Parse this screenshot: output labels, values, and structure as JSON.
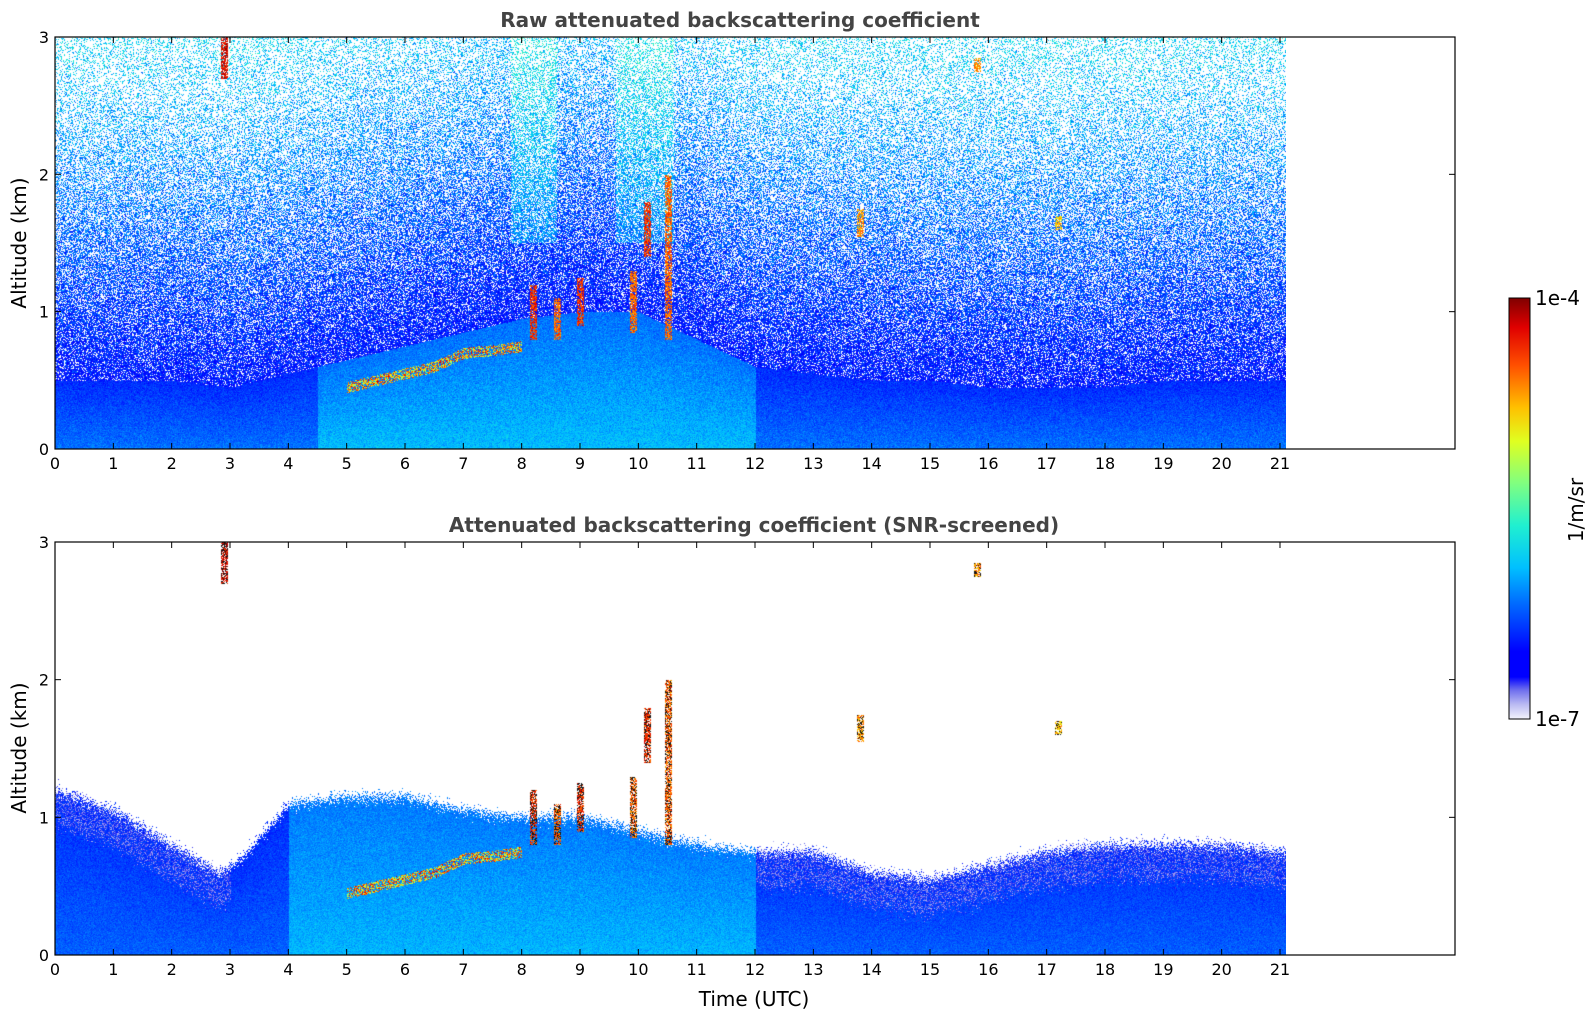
{
  "chart_data": [
    {
      "type": "heatmap",
      "title": "Raw attenuated backscattering coefficient",
      "xlabel": "",
      "ylabel": "Altitude (km)",
      "xlim": [
        0,
        24
      ],
      "ylim": [
        0,
        3
      ],
      "data_xlim": [
        0,
        21.1
      ],
      "xticks": [
        0,
        1,
        2,
        3,
        4,
        5,
        6,
        7,
        8,
        9,
        10,
        11,
        12,
        13,
        14,
        15,
        16,
        17,
        18,
        19,
        20,
        21
      ],
      "yticks": [
        0,
        1,
        2,
        3
      ],
      "screened": false,
      "boundary_layer_top_km": [
        [
          0,
          0.5
        ],
        [
          2,
          0.5
        ],
        [
          3,
          0.45
        ],
        [
          4,
          0.55
        ],
        [
          5,
          0.65
        ],
        [
          6,
          0.75
        ],
        [
          7,
          0.85
        ],
        [
          8,
          0.95
        ],
        [
          9,
          1.0
        ],
        [
          10,
          1.0
        ],
        [
          11,
          0.8
        ],
        [
          12,
          0.6
        ],
        [
          13,
          0.55
        ],
        [
          14,
          0.5
        ],
        [
          15,
          0.5
        ],
        [
          16,
          0.45
        ],
        [
          17,
          0.45
        ],
        [
          18,
          0.45
        ],
        [
          19,
          0.5
        ],
        [
          20,
          0.5
        ],
        [
          21,
          0.5
        ]
      ],
      "aerosol_layer_km": [
        [
          5,
          0.45
        ],
        [
          5.5,
          0.5
        ],
        [
          6,
          0.55
        ],
        [
          6.5,
          0.6
        ],
        [
          7,
          0.7
        ],
        [
          7.5,
          0.72
        ],
        [
          8,
          0.75
        ]
      ],
      "cloud_features": [
        {
          "t": 2.9,
          "z0": 2.7,
          "z1": 3.0,
          "intensity": 1.0
        },
        {
          "t": 8.2,
          "z0": 0.8,
          "z1": 1.2,
          "intensity": 0.95
        },
        {
          "t": 8.6,
          "z0": 0.8,
          "z1": 1.1,
          "intensity": 0.9
        },
        {
          "t": 9.0,
          "z0": 0.9,
          "z1": 1.25,
          "intensity": 0.95
        },
        {
          "t": 9.9,
          "z0": 0.85,
          "z1": 1.3,
          "intensity": 0.9
        },
        {
          "t": 10.15,
          "z0": 1.4,
          "z1": 1.8,
          "intensity": 0.95
        },
        {
          "t": 10.5,
          "z0": 0.8,
          "z1": 2.0,
          "intensity": 0.9
        },
        {
          "t": 13.8,
          "z0": 1.55,
          "z1": 1.75,
          "intensity": 0.85
        },
        {
          "t": 15.8,
          "z0": 2.75,
          "z1": 2.85,
          "intensity": 0.85
        },
        {
          "t": 17.2,
          "z0": 1.6,
          "z1": 1.7,
          "intensity": 0.8
        }
      ]
    },
    {
      "type": "heatmap",
      "title": "Attenuated backscattering coefficient (SNR-screened)",
      "xlabel": "Time (UTC)",
      "ylabel": "Altitude (km)",
      "xlim": [
        0,
        24
      ],
      "ylim": [
        0,
        3
      ],
      "data_xlim": [
        0,
        21.1
      ],
      "xticks": [
        0,
        1,
        2,
        3,
        4,
        5,
        6,
        7,
        8,
        9,
        10,
        11,
        12,
        13,
        14,
        15,
        16,
        17,
        18,
        19,
        20,
        21
      ],
      "yticks": [
        0,
        1,
        2,
        3
      ],
      "screened": true,
      "boundary_layer_top_km": [
        [
          0,
          1.2
        ],
        [
          1,
          1.05
        ],
        [
          2,
          0.8
        ],
        [
          2.8,
          0.6
        ],
        [
          3.2,
          0.7
        ],
        [
          4,
          1.1
        ],
        [
          5,
          1.15
        ],
        [
          6,
          1.15
        ],
        [
          7,
          1.05
        ],
        [
          8,
          1.0
        ],
        [
          9,
          1.0
        ],
        [
          10,
          0.9
        ],
        [
          11,
          0.8
        ],
        [
          12,
          0.75
        ],
        [
          13,
          0.75
        ],
        [
          14,
          0.6
        ],
        [
          15,
          0.55
        ],
        [
          16,
          0.65
        ],
        [
          17,
          0.75
        ],
        [
          18,
          0.8
        ],
        [
          19,
          0.8
        ],
        [
          20,
          0.8
        ],
        [
          21,
          0.75
        ]
      ],
      "aerosol_layer_km": [
        [
          5,
          0.45
        ],
        [
          5.5,
          0.5
        ],
        [
          6,
          0.55
        ],
        [
          6.5,
          0.6
        ],
        [
          7,
          0.7
        ],
        [
          7.5,
          0.72
        ],
        [
          8,
          0.75
        ]
      ],
      "cloud_features": [
        {
          "t": 2.9,
          "z0": 2.7,
          "z1": 3.0,
          "intensity": 1.0
        },
        {
          "t": 8.2,
          "z0": 0.8,
          "z1": 1.2,
          "intensity": 0.95
        },
        {
          "t": 8.6,
          "z0": 0.8,
          "z1": 1.1,
          "intensity": 0.9
        },
        {
          "t": 9.0,
          "z0": 0.9,
          "z1": 1.25,
          "intensity": 0.95
        },
        {
          "t": 9.9,
          "z0": 0.85,
          "z1": 1.3,
          "intensity": 0.9
        },
        {
          "t": 10.15,
          "z0": 1.4,
          "z1": 1.8,
          "intensity": 0.95
        },
        {
          "t": 10.5,
          "z0": 0.8,
          "z1": 2.0,
          "intensity": 0.9
        },
        {
          "t": 13.8,
          "z0": 1.55,
          "z1": 1.75,
          "intensity": 0.85
        },
        {
          "t": 15.8,
          "z0": 2.75,
          "z1": 2.85,
          "intensity": 0.85
        },
        {
          "t": 17.2,
          "z0": 1.6,
          "z1": 1.7,
          "intensity": 0.8
        }
      ]
    }
  ],
  "colorbar": {
    "label": "1/m/sr",
    "min_label": "1e-7",
    "max_label": "1e-4",
    "scale": "log",
    "colormap": "jet",
    "low_colors": [
      "#ffffff",
      "#e4e4f8",
      "#c8c8f4",
      "#aaaaf0",
      "#8888ee",
      "#6666ee",
      "#3a3af0"
    ]
  }
}
